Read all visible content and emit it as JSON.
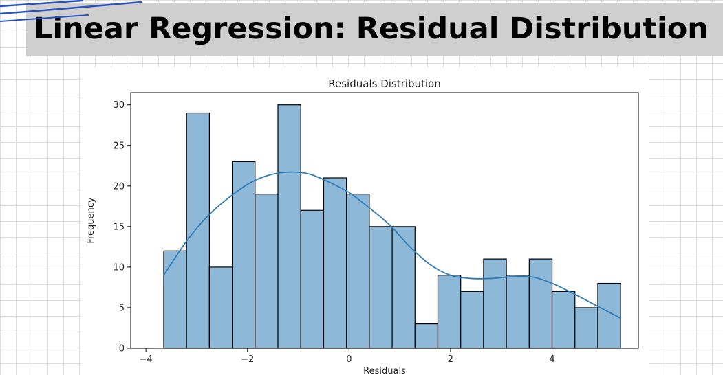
{
  "page": {
    "title": "Linear Regression: Residual Distribution"
  },
  "colors": {
    "banner": "#cfcfcf",
    "bar_fill": "#8db8d8",
    "bar_edge": "#000000",
    "kde_line": "#2f7bb5",
    "pen_stroke": "#2a52be"
  },
  "chart_data": {
    "type": "bar",
    "title": "Residuals Distribution",
    "xlabel": "Residuals",
    "ylabel": "Frequency",
    "xlim": [
      -4.3,
      5.7
    ],
    "ylim": [
      0,
      31.5
    ],
    "xticks": [
      -4,
      -2,
      0,
      2,
      4
    ],
    "xtick_labels": [
      "−4",
      "−2",
      "0",
      "2",
      "4"
    ],
    "yticks": [
      0,
      5,
      10,
      15,
      20,
      25,
      30
    ],
    "grid": false,
    "bins": [
      {
        "x0": -3.65,
        "x1": -3.2,
        "value": 12
      },
      {
        "x0": -3.2,
        "x1": -2.75,
        "value": 29
      },
      {
        "x0": -2.75,
        "x1": -2.3,
        "value": 10
      },
      {
        "x0": -2.3,
        "x1": -1.85,
        "value": 23
      },
      {
        "x0": -1.85,
        "x1": -1.4,
        "value": 19
      },
      {
        "x0": -1.4,
        "x1": -0.95,
        "value": 30
      },
      {
        "x0": -0.95,
        "x1": -0.5,
        "value": 17
      },
      {
        "x0": -0.5,
        "x1": -0.05,
        "value": 21
      },
      {
        "x0": -0.05,
        "x1": 0.4,
        "value": 19
      },
      {
        "x0": 0.4,
        "x1": 0.85,
        "value": 15
      },
      {
        "x0": 0.85,
        "x1": 1.3,
        "value": 15
      },
      {
        "x0": 1.3,
        "x1": 1.75,
        "value": 3
      },
      {
        "x0": 1.75,
        "x1": 2.2,
        "value": 9
      },
      {
        "x0": 2.2,
        "x1": 2.65,
        "value": 7
      },
      {
        "x0": 2.65,
        "x1": 3.1,
        "value": 11
      },
      {
        "x0": 3.1,
        "x1": 3.55,
        "value": 9
      },
      {
        "x0": 3.55,
        "x1": 4.0,
        "value": 11
      },
      {
        "x0": 4.0,
        "x1": 4.45,
        "value": 7
      },
      {
        "x0": 4.45,
        "x1": 4.9,
        "value": 5
      },
      {
        "x0": 4.9,
        "x1": 5.35,
        "value": 8
      }
    ],
    "kde": {
      "x": [
        -3.65,
        -3.2,
        -2.8,
        -2.4,
        -2.0,
        -1.6,
        -1.2,
        -0.8,
        -0.4,
        0.0,
        0.4,
        0.8,
        1.2,
        1.6,
        2.0,
        2.4,
        2.8,
        3.2,
        3.6,
        4.0,
        4.4,
        4.8,
        5.35
      ],
      "y": [
        9,
        13.2,
        16.2,
        18.4,
        20.2,
        21.3,
        21.7,
        21.5,
        20.5,
        19.2,
        17.3,
        15.2,
        12.5,
        10.3,
        9.0,
        8.6,
        8.6,
        8.8,
        8.8,
        8.0,
        6.8,
        5.5,
        3.7
      ]
    }
  }
}
